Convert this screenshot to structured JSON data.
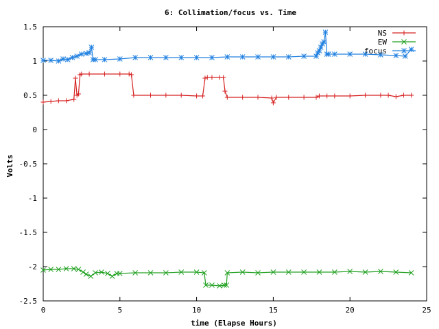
{
  "chart_data": {
    "type": "line",
    "title": "6: Collimation/focus vs. Time",
    "xlabel": "time (Elapse Hours)",
    "ylabel": "Volts",
    "xlim": [
      0,
      25
    ],
    "ylim": [
      -2.5,
      1.5
    ],
    "x_ticks": [
      0,
      5,
      10,
      15,
      20,
      25
    ],
    "x_tick_labels": [
      "0",
      "5",
      "10",
      "15",
      "20",
      "25"
    ],
    "y_ticks": [
      1.5,
      1,
      0.5,
      0,
      -0.5,
      -1,
      -1.5,
      -2,
      -2.5
    ],
    "y_tick_labels": [
      "1.5",
      "1",
      "0.5",
      "0",
      "-0.5",
      "-1",
      "-1.5",
      "-2",
      "-2.5"
    ],
    "grid": false,
    "legend_position": "top-right",
    "series": [
      {
        "name": "NS",
        "color": "#d62020",
        "marker": "plus",
        "x": [
          0.0,
          0.5,
          1.0,
          1.5,
          2.0,
          2.1,
          2.2,
          2.3,
          2.4,
          2.5,
          3.0,
          4.0,
          5.0,
          5.6,
          5.75,
          5.9,
          7.0,
          8.0,
          9.0,
          10.0,
          10.4,
          10.55,
          10.7,
          11.0,
          11.5,
          11.75,
          11.85,
          12.0,
          13.0,
          14.0,
          14.9,
          15.0,
          15.2,
          16.0,
          17.0,
          17.8,
          18.0,
          18.5,
          19.0,
          20.0,
          21.0,
          22.0,
          22.5,
          23.0,
          23.5,
          24.0
        ],
        "values": [
          0.4,
          0.41,
          0.42,
          0.42,
          0.44,
          0.75,
          0.5,
          0.52,
          0.8,
          0.81,
          0.81,
          0.81,
          0.81,
          0.81,
          0.8,
          0.5,
          0.5,
          0.5,
          0.5,
          0.49,
          0.49,
          0.75,
          0.76,
          0.76,
          0.76,
          0.76,
          0.56,
          0.47,
          0.47,
          0.47,
          0.46,
          0.39,
          0.47,
          0.47,
          0.47,
          0.47,
          0.49,
          0.49,
          0.49,
          0.49,
          0.5,
          0.5,
          0.5,
          0.48,
          0.5,
          0.5
        ]
      },
      {
        "name": "EW",
        "color": "#20a020",
        "marker": "cross",
        "x": [
          0.0,
          0.5,
          1.0,
          1.5,
          2.0,
          2.3,
          2.6,
          2.8,
          3.1,
          3.4,
          3.8,
          4.2,
          4.5,
          4.8,
          5.0,
          6.0,
          7.0,
          8.0,
          9.0,
          10.0,
          10.5,
          10.6,
          11.0,
          11.5,
          11.8,
          11.95,
          12.0,
          13.0,
          14.0,
          15.0,
          16.0,
          17.0,
          18.0,
          19.0,
          20.0,
          21.0,
          22.0,
          23.0,
          24.0
        ],
        "values": [
          -2.05,
          -2.04,
          -2.04,
          -2.03,
          -2.03,
          -2.04,
          -2.08,
          -2.11,
          -2.14,
          -2.09,
          -2.08,
          -2.1,
          -2.14,
          -2.1,
          -2.1,
          -2.09,
          -2.09,
          -2.09,
          -2.08,
          -2.08,
          -2.09,
          -2.27,
          -2.27,
          -2.28,
          -2.27,
          -2.27,
          -2.09,
          -2.08,
          -2.09,
          -2.08,
          -2.08,
          -2.08,
          -2.08,
          -2.08,
          -2.07,
          -2.08,
          -2.07,
          -2.08,
          -2.09
        ]
      },
      {
        "name": "focus",
        "color": "#2080e0",
        "marker": "star",
        "x": [
          0.0,
          0.5,
          1.0,
          1.3,
          1.6,
          1.9,
          2.2,
          2.5,
          2.8,
          3.0,
          3.15,
          3.25,
          3.4,
          4.0,
          5.0,
          6.0,
          7.0,
          8.0,
          9.0,
          10.0,
          11.0,
          12.0,
          13.0,
          14.0,
          15.0,
          16.0,
          17.0,
          17.8,
          17.9,
          18.0,
          18.1,
          18.2,
          18.3,
          18.4,
          18.5,
          18.6,
          19.0,
          20.0,
          21.0,
          22.0,
          23.0,
          23.6,
          24.0
        ],
        "values": [
          1.01,
          1.01,
          1.0,
          1.03,
          1.02,
          1.05,
          1.07,
          1.1,
          1.11,
          1.12,
          1.2,
          1.02,
          1.02,
          1.02,
          1.03,
          1.05,
          1.05,
          1.05,
          1.05,
          1.05,
          1.05,
          1.06,
          1.06,
          1.06,
          1.06,
          1.06,
          1.07,
          1.07,
          1.12,
          1.15,
          1.2,
          1.25,
          1.28,
          1.42,
          1.1,
          1.1,
          1.1,
          1.1,
          1.1,
          1.09,
          1.08,
          1.07,
          1.17
        ]
      }
    ]
  }
}
